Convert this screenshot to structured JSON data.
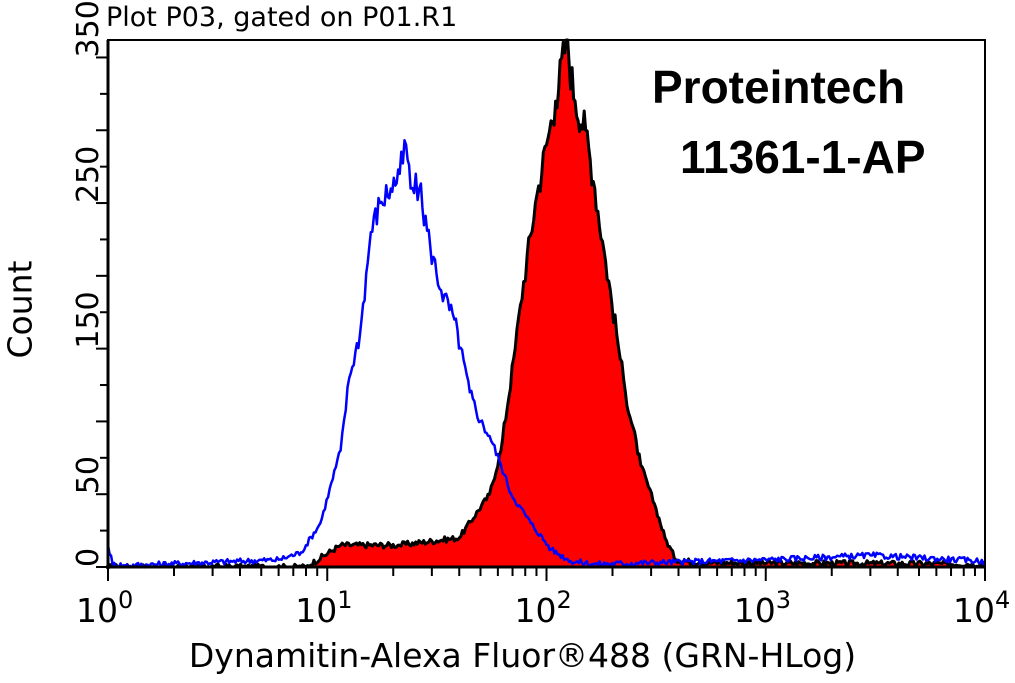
{
  "chart_data": {
    "type": "area",
    "title": "Plot P03, gated on P01.R1",
    "xlabel": "Dynamitin-Alexa Fluor®488 (GRN-HLog)",
    "ylabel": "Count",
    "xscale": "log",
    "xlim": [
      1,
      10000
    ],
    "ylim": [
      0,
      362
    ],
    "x_ticks": [
      {
        "base": "10",
        "exp": "0"
      },
      {
        "base": "10",
        "exp": "1"
      },
      {
        "base": "10",
        "exp": "2"
      },
      {
        "base": "10",
        "exp": "3"
      },
      {
        "base": "10",
        "exp": "4"
      }
    ],
    "y_tick_labels": [
      "0",
      "50",
      "150",
      "250",
      "350"
    ],
    "grid": false,
    "series": [
      {
        "style": "filled",
        "fill": "#ff0000",
        "stroke": "#000000",
        "x": [
          1,
          8,
          11.5,
          21,
          40,
          55,
          62,
          72,
          76,
          89,
          100,
          110,
          123,
          135,
          151,
          166,
          186,
          209,
          229,
          269,
          316,
          347,
          389,
          500,
          10000
        ],
        "y": [
          0,
          0,
          15,
          15,
          20,
          50,
          80,
          150,
          180,
          250,
          290,
          320,
          362,
          320,
          300,
          260,
          210,
          160,
          120,
          70,
          40,
          20,
          5,
          3,
          2
        ]
      },
      {
        "style": "line",
        "stroke": "#0000ff",
        "x": [
          1,
          1.05,
          1.2,
          6,
          7.6,
          9.3,
          11.5,
          12.6,
          14.1,
          15.8,
          17.4,
          19.5,
          21.4,
          22.9,
          24,
          26.3,
          29.5,
          33.1,
          38,
          44.7,
          50,
          55,
          62,
          69,
          85,
          105,
          129,
          166,
          1000,
          3000,
          10000
        ],
        "y": [
          15,
          2,
          1,
          5,
          10,
          30,
          80,
          130,
          160,
          230,
          250,
          260,
          270,
          290,
          260,
          260,
          220,
          190,
          170,
          120,
          100,
          90,
          70,
          50,
          30,
          12,
          4,
          2,
          5,
          8,
          4
        ]
      }
    ]
  },
  "watermark": {
    "line1": "Proteintech",
    "line2": "11361-1-AP"
  }
}
